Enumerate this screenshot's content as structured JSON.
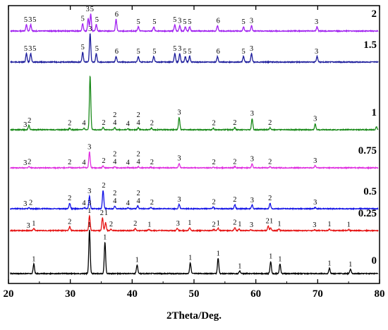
{
  "chart_data": {
    "type": "line",
    "xlabel": "2Theta/Deg.",
    "ylabel": "",
    "xlim": [
      20,
      80
    ],
    "xticks": [
      "20",
      "30",
      "40",
      "50",
      "60",
      "70",
      "80"
    ],
    "grid": false,
    "series": [
      {
        "name": "2",
        "color": "#a020f0",
        "peaks": [
          [
            22.9,
            0.3
          ],
          [
            23.6,
            0.3
          ],
          [
            32.0,
            0.35
          ],
          [
            32.9,
            0.6
          ],
          [
            33.3,
            0.8
          ],
          [
            34.2,
            0.3
          ],
          [
            37.4,
            0.55
          ],
          [
            41.0,
            0.2
          ],
          [
            43.5,
            0.2
          ],
          [
            46.9,
            0.3
          ],
          [
            47.7,
            0.25
          ],
          [
            48.6,
            0.2
          ],
          [
            49.3,
            0.2
          ],
          [
            53.8,
            0.25
          ],
          [
            58.0,
            0.2
          ],
          [
            59.3,
            0.25
          ],
          [
            69.9,
            0.2
          ]
        ],
        "labels": [
          {
            "t": "5",
            "x": 22.8
          },
          {
            "t": "3",
            "x": 23.5
          },
          {
            "t": "5",
            "x": 24.2
          },
          {
            "t": "5",
            "x": 32.0
          },
          {
            "t": "3",
            "x": 32.8
          },
          {
            "t": "5",
            "x": 33.5
          },
          {
            "t": "5",
            "x": 34.3
          },
          {
            "t": "6",
            "x": 37.5
          },
          {
            "t": "5",
            "x": 41.0
          },
          {
            "t": "5",
            "x": 43.6
          },
          {
            "t": "5",
            "x": 46.9
          },
          {
            "t": "3",
            "x": 47.7
          },
          {
            "t": "5",
            "x": 48.5
          },
          {
            "t": "5",
            "x": 49.3
          },
          {
            "t": "6",
            "x": 53.9
          },
          {
            "t": "5",
            "x": 58.0
          },
          {
            "t": "3",
            "x": 59.3
          },
          {
            "t": "3",
            "x": 69.8
          }
        ]
      },
      {
        "name": "1.5",
        "color": "#1c1c9c",
        "peaks": [
          [
            22.9,
            0.3
          ],
          [
            23.6,
            0.3
          ],
          [
            32.0,
            0.35
          ],
          [
            33.2,
            1.0
          ],
          [
            34.2,
            0.3
          ],
          [
            37.4,
            0.2
          ],
          [
            41.0,
            0.2
          ],
          [
            43.5,
            0.2
          ],
          [
            46.9,
            0.3
          ],
          [
            47.7,
            0.3
          ],
          [
            48.6,
            0.2
          ],
          [
            49.3,
            0.2
          ],
          [
            53.8,
            0.2
          ],
          [
            58.0,
            0.2
          ],
          [
            59.3,
            0.3
          ],
          [
            69.9,
            0.2
          ]
        ],
        "labels": [
          {
            "t": "5",
            "x": 22.8
          },
          {
            "t": "3",
            "x": 23.5
          },
          {
            "t": "5",
            "x": 24.2
          },
          {
            "t": "5",
            "x": 32.0
          },
          {
            "t": "3",
            "x": 33.2
          },
          {
            "t": "5",
            "x": 34.3
          },
          {
            "t": "6",
            "x": 37.5
          },
          {
            "t": "5",
            "x": 41.0
          },
          {
            "t": "5",
            "x": 43.6
          },
          {
            "t": "5",
            "x": 46.9
          },
          {
            "t": "3",
            "x": 47.7
          },
          {
            "t": "5",
            "x": 48.5
          },
          {
            "t": "5",
            "x": 49.3
          },
          {
            "t": "6",
            "x": 53.9
          },
          {
            "t": "5",
            "x": 58.0
          },
          {
            "t": "3",
            "x": 59.3
          },
          {
            "t": "3",
            "x": 69.8
          }
        ]
      },
      {
        "name": "1",
        "color": "#1a8a1a",
        "peaks": [
          [
            23.3,
            0.08
          ],
          [
            29.9,
            0.03
          ],
          [
            32.2,
            0.03
          ],
          [
            33.2,
            1.0
          ],
          [
            35.3,
            0.04
          ],
          [
            37.2,
            0.04
          ],
          [
            39.3,
            0.02
          ],
          [
            41.0,
            0.04
          ],
          [
            43.1,
            0.03
          ],
          [
            47.6,
            0.23
          ],
          [
            53.1,
            0.03
          ],
          [
            56.6,
            0.04
          ],
          [
            59.4,
            0.21
          ],
          [
            62.3,
            0.04
          ],
          [
            69.6,
            0.11
          ],
          [
            79.5,
            0.05
          ]
        ],
        "labels": [
          {
            "t": "3",
            "x": 22.7
          },
          {
            "t": "2",
            "x": 23.4
          },
          {
            "t": "2",
            "x": 29.9
          },
          {
            "t": "4",
            "x": 32.2
          },
          {
            "t": "2",
            "x": 35.4
          },
          {
            "t": "2",
            "x": 37.2,
            "y": -15
          },
          {
            "t": "4",
            "x": 37.2
          },
          {
            "t": "4",
            "x": 39.3
          },
          {
            "t": "2",
            "x": 41.0,
            "y": -15
          },
          {
            "t": "4",
            "x": 41.0
          },
          {
            "t": "2",
            "x": 43.2
          },
          {
            "t": "3",
            "x": 47.6
          },
          {
            "t": "2",
            "x": 53.2
          },
          {
            "t": "2",
            "x": 56.6
          },
          {
            "t": "3",
            "x": 59.4
          },
          {
            "t": "2",
            "x": 62.3
          },
          {
            "t": "3",
            "x": 69.6
          }
        ]
      },
      {
        "name": "0.75",
        "color": "#e030e0",
        "peaks": [
          [
            23.3,
            0.05
          ],
          [
            29.9,
            0.03
          ],
          [
            32.2,
            0.02
          ],
          [
            33.1,
            0.65
          ],
          [
            35.3,
            0.08
          ],
          [
            37.2,
            0.05
          ],
          [
            39.3,
            0.02
          ],
          [
            41.0,
            0.05
          ],
          [
            43.0,
            0.03
          ],
          [
            47.6,
            0.18
          ],
          [
            53.1,
            0.03
          ],
          [
            56.6,
            0.05
          ],
          [
            59.4,
            0.16
          ],
          [
            62.3,
            0.05
          ],
          [
            69.6,
            0.09
          ]
        ],
        "labels": [
          {
            "t": "3",
            "x": 22.7
          },
          {
            "t": "2",
            "x": 23.4
          },
          {
            "t": "2",
            "x": 29.9
          },
          {
            "t": "4",
            "x": 32.2
          },
          {
            "t": "3",
            "x": 33.1
          },
          {
            "t": "2",
            "x": 35.4
          },
          {
            "t": "2",
            "x": 37.2,
            "y": -15
          },
          {
            "t": "4",
            "x": 37.2
          },
          {
            "t": "4",
            "x": 39.3
          },
          {
            "t": "2",
            "x": 41.0,
            "y": -15
          },
          {
            "t": "4",
            "x": 41.0
          },
          {
            "t": "2",
            "x": 43.2
          },
          {
            "t": "3",
            "x": 47.6
          },
          {
            "t": "2",
            "x": 53.2
          },
          {
            "t": "2",
            "x": 56.6
          },
          {
            "t": "3",
            "x": 59.4
          },
          {
            "t": "2",
            "x": 62.3
          },
          {
            "t": "3",
            "x": 69.6
          }
        ]
      },
      {
        "name": "0.5",
        "color": "#1414e6",
        "peaks": [
          [
            23.3,
            0.04
          ],
          [
            29.9,
            0.2
          ],
          [
            32.3,
            0.03
          ],
          [
            33.1,
            0.45
          ],
          [
            35.3,
            0.65
          ],
          [
            37.2,
            0.1
          ],
          [
            39.3,
            0.03
          ],
          [
            40.9,
            0.1
          ],
          [
            43.0,
            0.05
          ],
          [
            47.6,
            0.15
          ],
          [
            53.1,
            0.06
          ],
          [
            56.6,
            0.15
          ],
          [
            59.4,
            0.13
          ],
          [
            62.3,
            0.2
          ],
          [
            69.6,
            0.05
          ]
        ],
        "labels": [
          {
            "t": "3",
            "x": 22.7
          },
          {
            "t": "2",
            "x": 23.6
          },
          {
            "t": "2",
            "x": 29.9
          },
          {
            "t": "4",
            "x": 32.2
          },
          {
            "t": "3",
            "x": 33.1
          },
          {
            "t": "2",
            "x": 35.4
          },
          {
            "t": "2",
            "x": 37.2,
            "y": -15
          },
          {
            "t": "4",
            "x": 37.2
          },
          {
            "t": "4",
            "x": 39.3
          },
          {
            "t": "2",
            "x": 41.0,
            "y": -15
          },
          {
            "t": "4",
            "x": 41.0
          },
          {
            "t": "2",
            "x": 43.2
          },
          {
            "t": "3",
            "x": 47.6
          },
          {
            "t": "2",
            "x": 53.2
          },
          {
            "t": "2",
            "x": 56.6
          },
          {
            "t": "3",
            "x": 59.4
          },
          {
            "t": "2",
            "x": 62.3
          },
          {
            "t": "3",
            "x": 69.6
          }
        ]
      },
      {
        "name": "0.25",
        "color": "#e61414",
        "peaks": [
          [
            24.1,
            0.08
          ],
          [
            29.9,
            0.15
          ],
          [
            33.1,
            0.55
          ],
          [
            35.2,
            0.48
          ],
          [
            35.7,
            0.3
          ],
          [
            36.6,
            0.05
          ],
          [
            40.5,
            0.08
          ],
          [
            42.7,
            0.04
          ],
          [
            47.3,
            0.08
          ],
          [
            49.3,
            0.11
          ],
          [
            53.2,
            0.04
          ],
          [
            53.9,
            0.09
          ],
          [
            56.6,
            0.12
          ],
          [
            57.3,
            0.05
          ],
          [
            59.2,
            0.03
          ],
          [
            62.0,
            0.17
          ],
          [
            62.4,
            0.1
          ],
          [
            63.7,
            0.06
          ],
          [
            69.5,
            0.03
          ],
          [
            71.9,
            0.05
          ],
          [
            75.0,
            0.04
          ]
        ],
        "labels": [
          {
            "t": "3",
            "x": 23.2
          },
          {
            "t": "1",
            "x": 24.1
          },
          {
            "t": "2",
            "x": 29.9
          },
          {
            "t": "3",
            "x": 33.1,
            "y": -15
          },
          {
            "t": "1",
            "x": 33.1
          },
          {
            "t": "2",
            "x": 35.1
          },
          {
            "t": "1",
            "x": 35.8
          },
          {
            "t": "2",
            "x": 36.6
          },
          {
            "t": "2",
            "x": 40.5
          },
          {
            "t": "1",
            "x": 42.8
          },
          {
            "t": "3",
            "x": 47.4
          },
          {
            "t": "1",
            "x": 49.3
          },
          {
            "t": "2",
            "x": 53.2
          },
          {
            "t": "1",
            "x": 53.9
          },
          {
            "t": "2",
            "x": 56.6
          },
          {
            "t": "1",
            "x": 57.4
          },
          {
            "t": "3",
            "x": 59.3
          },
          {
            "t": "2",
            "x": 61.9
          },
          {
            "t": "1",
            "x": 62.5
          },
          {
            "t": "1",
            "x": 63.8
          },
          {
            "t": "3",
            "x": 69.5
          },
          {
            "t": "1",
            "x": 71.9
          },
          {
            "t": "1",
            "x": 75.0
          }
        ]
      },
      {
        "name": "0",
        "color": "#000000",
        "peaks": [
          [
            24.1,
            0.22
          ],
          [
            33.1,
            1.0
          ],
          [
            35.6,
            0.72
          ],
          [
            40.8,
            0.2
          ],
          [
            49.4,
            0.25
          ],
          [
            53.9,
            0.35
          ],
          [
            57.4,
            0.06
          ],
          [
            62.4,
            0.28
          ],
          [
            63.9,
            0.22
          ],
          [
            71.9,
            0.12
          ],
          [
            75.3,
            0.1
          ]
        ],
        "labels": [
          {
            "t": "1",
            "x": 24.1
          },
          {
            "t": "1",
            "x": 33.1
          },
          {
            "t": "1",
            "x": 35.6
          },
          {
            "t": "1",
            "x": 40.8
          },
          {
            "t": "1",
            "x": 49.4
          },
          {
            "t": "1",
            "x": 53.9
          },
          {
            "t": "1",
            "x": 57.4
          },
          {
            "t": "1",
            "x": 62.4
          },
          {
            "t": "1",
            "x": 63.9
          },
          {
            "t": "1",
            "x": 71.9
          },
          {
            "t": "1",
            "x": 75.3
          }
        ]
      }
    ]
  }
}
